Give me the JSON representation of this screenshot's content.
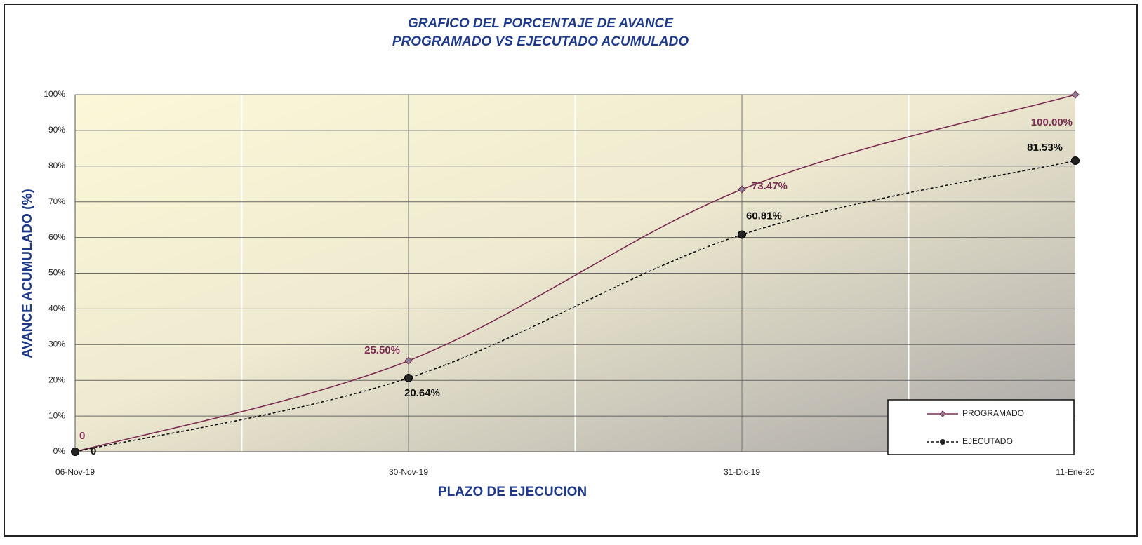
{
  "chart_data": {
    "type": "line",
    "title": [
      "GRAFICO DEL PORCENTAJE DE AVANCE",
      "PROGRAMADO VS EJECUTADO ACUMULADO"
    ],
    "y_label": "AVANCE ACUMULADO (%)",
    "x_label": "PLAZO DE EJECUCION",
    "categories": [
      "06-Nov-19",
      "30-Nov-19",
      "31-Dic-19",
      "11-Ene-20"
    ],
    "series": [
      {
        "name": "PROGRAMADO",
        "color": "#7b2d52",
        "marker": "diamond",
        "dash": false,
        "values": [
          0,
          25.5,
          73.47,
          100
        ],
        "value_labels": [
          "0",
          "25.50%",
          "73.47%",
          "100.00%"
        ]
      },
      {
        "name": "EJECUTADO",
        "color": "#111111",
        "marker": "circle",
        "dash": true,
        "values": [
          0,
          20.64,
          60.81,
          81.53
        ],
        "value_labels": [
          "0",
          "20.64%",
          "60.81%",
          "81.53%"
        ]
      }
    ],
    "ylim": [
      0,
      100
    ],
    "yticks": [
      {
        "value": 0,
        "label": "0%"
      },
      {
        "value": 10,
        "label": "10%"
      },
      {
        "value": 20,
        "label": "20%"
      },
      {
        "value": 30,
        "label": "30%"
      },
      {
        "value": 40,
        "label": "40%"
      },
      {
        "value": 50,
        "label": "50%"
      },
      {
        "value": 60,
        "label": "60%"
      },
      {
        "value": 70,
        "label": "70%"
      },
      {
        "value": 80,
        "label": "80%"
      },
      {
        "value": 90,
        "label": "90%"
      },
      {
        "value": 100,
        "label": "100%"
      }
    ],
    "grid": true,
    "legend": "lower right"
  }
}
